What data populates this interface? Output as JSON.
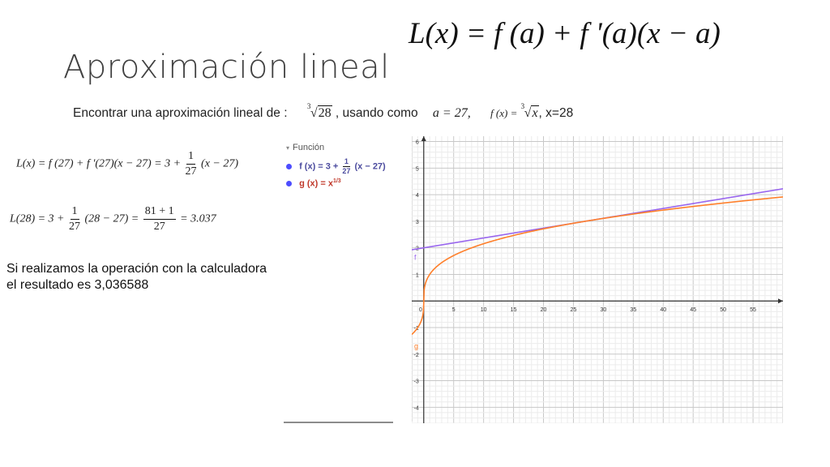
{
  "slide": {
    "title": "Aproximación lineal",
    "main_formula": "L(x) = f (a) + f '(a)(x − a)",
    "intro": {
      "text_before": "Encontrar una aproximación lineal de :",
      "radical_index": "3",
      "radical_value": "28",
      "text_mid": ", usando como",
      "a_value": "a = 27,",
      "fx_label": "f (x) =",
      "fx_radical_index": "3",
      "fx_radical_var": "x",
      "text_end": ", x=28"
    },
    "eq1": {
      "lhs": "L(x) = f (27) + f '(27)(x − 27) = 3 +",
      "num": "1",
      "den": "27",
      "rhs": "(x − 27)"
    },
    "eq2": {
      "lhs": "L(28) = 3 +",
      "num1": "1",
      "den1": "27",
      "mid": "(28 − 27) =",
      "num2": "81 + 1",
      "den2": "27",
      "rhs": "= 3.037"
    },
    "note": {
      "line1": "Si realizamos la operación con la calculadora",
      "line2": "el resultado es 3,036588"
    }
  },
  "algebra_panel": {
    "header": "Función",
    "f_prefix": "f (x) = 3 +",
    "f_num": "1",
    "f_den": "27",
    "f_suffix": "(x − 27)",
    "g_prefix": "g (x) = x",
    "g_exp": "1/3",
    "f_color": "#9966ee",
    "g_color": "#ff7f2a",
    "dot_color": "#4d4dff"
  },
  "chart_data": {
    "type": "line",
    "x_ticks": [
      0,
      5,
      10,
      15,
      20,
      25,
      30,
      35,
      40,
      45,
      50,
      55
    ],
    "y_ticks": [
      -4,
      -3,
      -2,
      -1,
      1,
      2,
      3,
      4,
      5,
      6
    ],
    "xlim": [
      -2,
      60
    ],
    "ylim": [
      -4.6,
      6.2
    ],
    "grid": true,
    "series": [
      {
        "name": "f",
        "expr": "3 + (1/27)(x - 27)",
        "color": "#9966ee"
      },
      {
        "name": "g",
        "expr": "x^(1/3)",
        "color": "#ff7f2a"
      }
    ]
  }
}
